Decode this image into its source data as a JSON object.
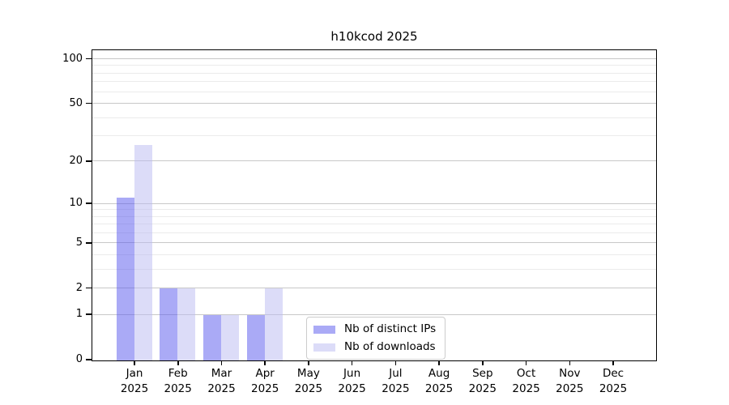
{
  "title": "h10kcod 2025",
  "chart_data": {
    "type": "bar",
    "title": "h10kcod 2025",
    "x_months": [
      "Jan",
      "Feb",
      "Mar",
      "Apr",
      "May",
      "Jun",
      "Jul",
      "Aug",
      "Sep",
      "Oct",
      "Nov",
      "Dec"
    ],
    "x_year": "2025",
    "series": [
      {
        "name": "Nb of distinct IPs",
        "color": "rgba(85,85,237,0.5)",
        "values": [
          11,
          2,
          1,
          1,
          0,
          0,
          0,
          0,
          0,
          0,
          0,
          0
        ]
      },
      {
        "name": "Nb of downloads",
        "color": "rgba(186,186,242,0.5)",
        "values": [
          26,
          2,
          1,
          2,
          0,
          0,
          0,
          0,
          0,
          0,
          0,
          0
        ]
      }
    ],
    "y_scale": "log10(1+value)",
    "y_major_ticks": [
      0,
      1,
      2,
      5,
      10,
      20,
      50,
      100
    ],
    "y_minor_gridlines": [
      3,
      4,
      6,
      7,
      8,
      9,
      30,
      40,
      60,
      70,
      80,
      90
    ],
    "y_top_value": 114,
    "grid": true,
    "legend_position": "lower-center-inside"
  },
  "legend": {
    "items": [
      {
        "label": "Nb of distinct IPs",
        "color": "rgba(85,85,237,0.5)"
      },
      {
        "label": "Nb of downloads",
        "color": "rgba(186,186,242,0.5)"
      }
    ]
  },
  "colors": {
    "background": "#ffffff",
    "spine": "#000000",
    "grid_major": "#c8c8c8",
    "grid_minor": "#ebebeb",
    "bar_distinct_ips": "rgba(85,85,237,0.5)",
    "bar_downloads": "rgba(186,186,242,0.5)",
    "text": "#000000"
  }
}
